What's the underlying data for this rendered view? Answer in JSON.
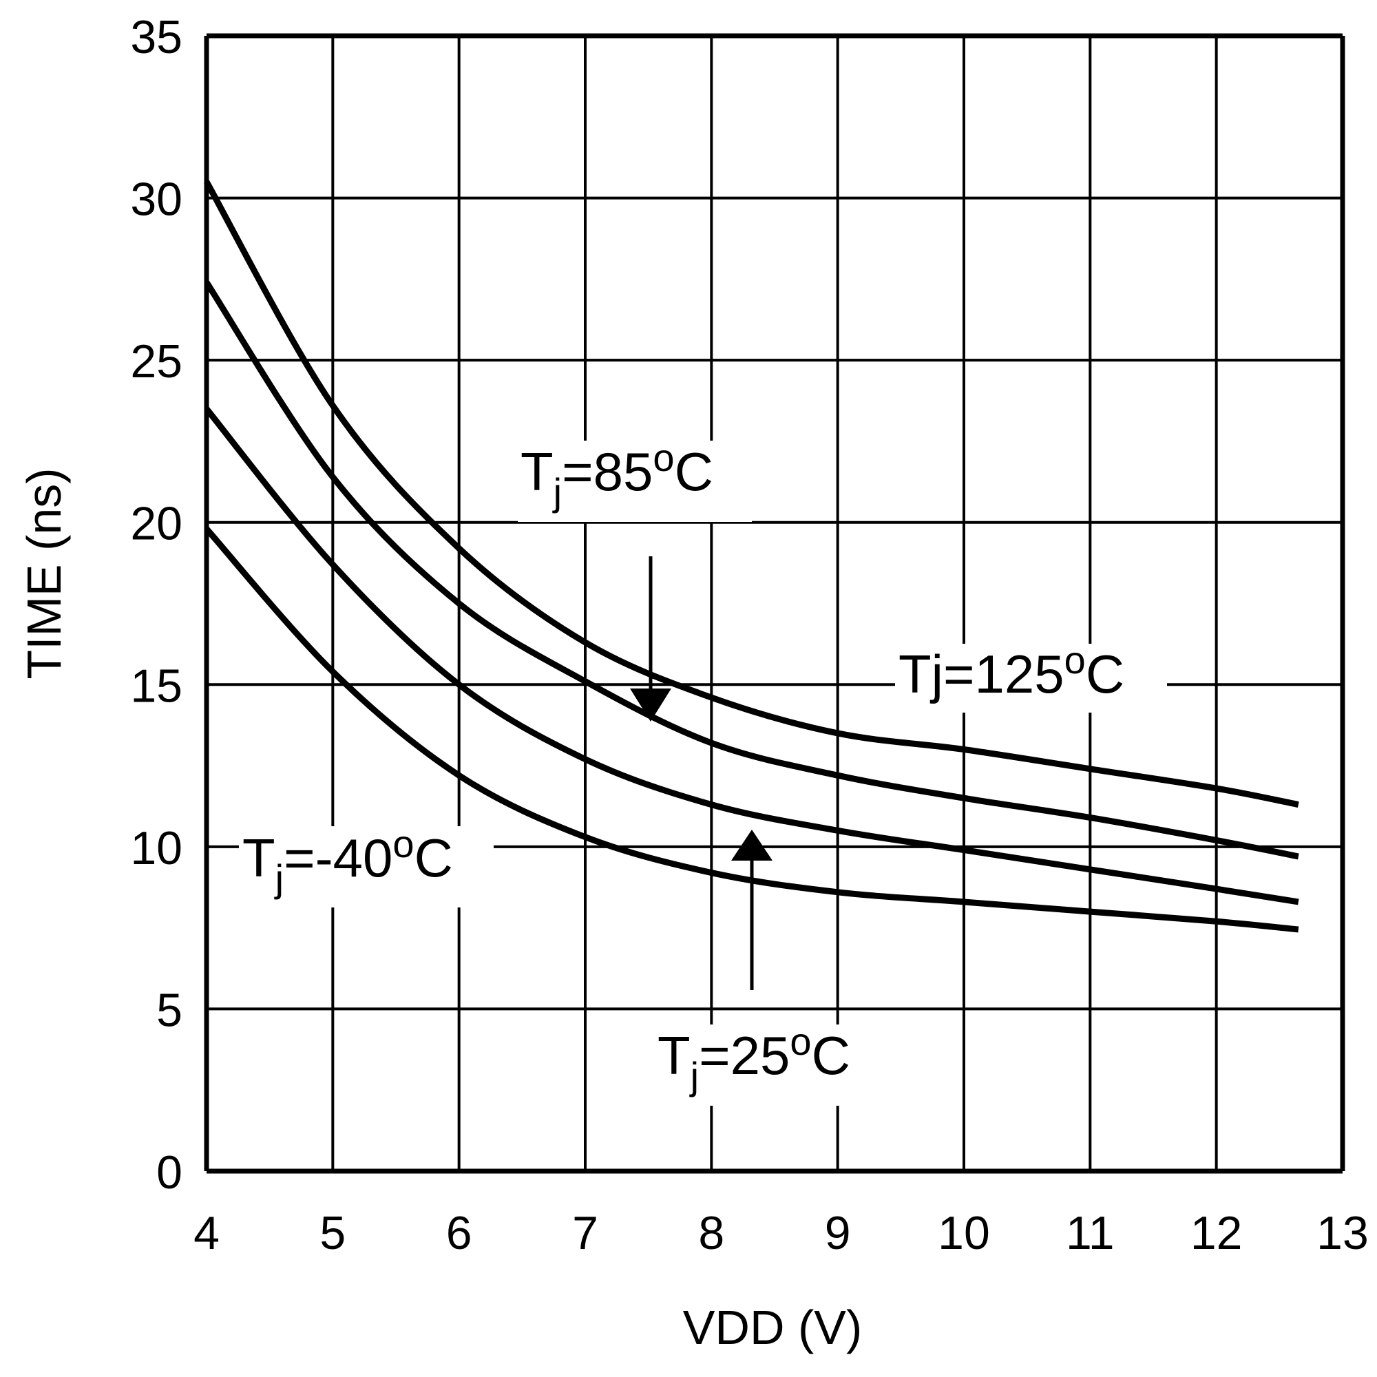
{
  "chart_data": {
    "type": "line",
    "title": "",
    "xlabel": "VDD (V)",
    "ylabel": "TIME (ns)",
    "xlim": [
      4,
      13
    ],
    "ylim": [
      0,
      35
    ],
    "xticks": [
      "4",
      "5",
      "6",
      "7",
      "8",
      "9",
      "10",
      "11",
      "12",
      "13"
    ],
    "yticks": [
      "0",
      "5",
      "10",
      "15",
      "20",
      "25",
      "30",
      "35"
    ],
    "grid": true,
    "line_color": "#000000",
    "x": [
      4,
      5,
      6,
      7,
      8,
      9,
      10,
      11,
      12,
      12.65
    ],
    "series": [
      {
        "name": "Tj=125oC",
        "values": [
          30.5,
          23.6,
          19.2,
          16.3,
          14.6,
          13.5,
          13.0,
          12.4,
          11.8,
          11.3
        ]
      },
      {
        "name": "Tj=85oC",
        "values": [
          27.4,
          21.4,
          17.5,
          15.1,
          13.2,
          12.2,
          11.5,
          10.9,
          10.2,
          9.7
        ]
      },
      {
        "name": "Tj=25oC",
        "values": [
          23.5,
          18.7,
          15.0,
          12.7,
          11.3,
          10.5,
          9.9,
          9.3,
          8.7,
          8.3
        ]
      },
      {
        "name": "Tj=-40oC",
        "values": [
          19.8,
          15.4,
          12.2,
          10.3,
          9.2,
          8.6,
          8.3,
          8.0,
          7.7,
          7.45
        ]
      }
    ],
    "annotations": {
      "t85": {
        "main": "T",
        "sub": "j",
        "rest": "=85",
        "deg": "o",
        "unit": "C"
      },
      "t125": {
        "main": "Tj=125",
        "deg": "o",
        "unit": "C"
      },
      "tm40": {
        "main": "T",
        "sub": "j",
        "rest": "=-40",
        "deg": "o",
        "unit": "C"
      },
      "t25": {
        "main": "T",
        "sub": "j",
        "rest": "=25",
        "deg": "o",
        "unit": "C"
      }
    }
  }
}
